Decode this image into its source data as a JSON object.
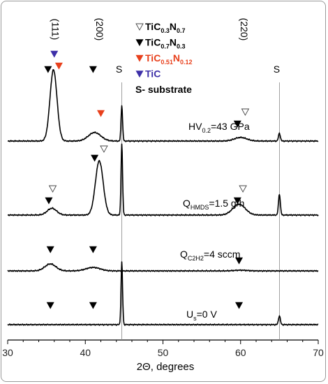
{
  "chart_data": {
    "type": "line",
    "xlabel": "2Θ, degrees",
    "xlim": [
      30,
      70
    ],
    "x_ticks": [
      "30",
      "40",
      "50",
      "60",
      "70"
    ],
    "grid": false,
    "legend_position": "top-center",
    "reflection_labels": [
      {
        "text": "(111)",
        "x": 35.7
      },
      {
        "text": "(200)",
        "x": 41.4
      },
      {
        "text": "(220)",
        "x": 60.0
      }
    ],
    "substrate_lines": [
      {
        "x": 44.7,
        "label": "S"
      },
      {
        "x": 65.0,
        "label": "S"
      }
    ],
    "legend": [
      {
        "marker": "open-triangle",
        "color": "#000000",
        "label": "TiC",
        "sub1": "0.3",
        "mid": "N",
        "sub2": "0.7"
      },
      {
        "marker": "filled-triangle",
        "color": "#000000",
        "label": "TiC",
        "sub1": "0.7",
        "mid": "N",
        "sub2": "0.3"
      },
      {
        "marker": "filled-triangle",
        "color": "#e8401c",
        "label": "TiC",
        "sub1": "0.51",
        "mid": "N",
        "sub2": "0.12"
      },
      {
        "marker": "filled-triangle",
        "color": "#3d2fa8",
        "label": "TiC",
        "sub1": "",
        "mid": "",
        "sub2": ""
      },
      {
        "marker": "none",
        "color": "#000000",
        "label": "S- substrate",
        "sub1": "",
        "mid": "",
        "sub2": ""
      }
    ],
    "series": [
      {
        "name": "HV0.2=43 GPa",
        "label_main": "HV",
        "label_sub": "0.2",
        "label_rest": "=43 GPa",
        "peaks": [
          {
            "x": 35.9,
            "h": 1.0,
            "w": 0.45
          },
          {
            "x": 41.2,
            "h": 0.12,
            "w": 0.8
          },
          {
            "x": 44.7,
            "h": 0.5,
            "w": 0.1
          },
          {
            "x": 60.0,
            "h": 0.05,
            "w": 0.8
          },
          {
            "x": 65.0,
            "h": 0.11,
            "w": 0.12
          }
        ],
        "markers": [
          {
            "x": 35.2,
            "type": "filled",
            "color": "#000000"
          },
          {
            "x": 36.0,
            "type": "filled",
            "color": "#3d2fa8"
          },
          {
            "x": 36.6,
            "type": "filled",
            "color": "#e8401c"
          },
          {
            "x": 41.0,
            "type": "filled",
            "color": "#000000"
          },
          {
            "x": 42.0,
            "type": "filled",
            "color": "#e8401c"
          },
          {
            "x": 59.6,
            "type": "filled",
            "color": "#000000"
          },
          {
            "x": 60.6,
            "type": "open",
            "color": "#000000"
          }
        ]
      },
      {
        "name": "QHMDS=1.5 g/h",
        "label_main": "Q",
        "label_sub": "HMDS",
        "label_rest": "=1.5 g/h",
        "peaks": [
          {
            "x": 35.7,
            "h": 0.1,
            "w": 0.6
          },
          {
            "x": 41.8,
            "h": 0.8,
            "w": 0.5
          },
          {
            "x": 44.7,
            "h": 1.05,
            "w": 0.1
          },
          {
            "x": 59.8,
            "h": 0.16,
            "w": 0.8
          },
          {
            "x": 65.0,
            "h": 0.31,
            "w": 0.12
          }
        ],
        "markers": [
          {
            "x": 35.3,
            "type": "filled",
            "color": "#000000"
          },
          {
            "x": 35.8,
            "type": "open",
            "color": "#000000"
          },
          {
            "x": 41.2,
            "type": "filled",
            "color": "#000000"
          },
          {
            "x": 42.4,
            "type": "open",
            "color": "#000000"
          },
          {
            "x": 59.6,
            "type": "filled",
            "color": "#000000"
          },
          {
            "x": 60.3,
            "type": "open",
            "color": "#000000"
          }
        ]
      },
      {
        "name": "QC2H2=4 sccm",
        "label_main": "Q",
        "label_sub": "C2H2",
        "label_rest": "=4 sccm",
        "peaks": [
          {
            "x": 35.5,
            "h": 0.1,
            "w": 0.7
          },
          {
            "x": 41.0,
            "h": 0.05,
            "w": 0.9
          },
          {
            "x": 60.0,
            "h": 0.01,
            "w": 0.8
          }
        ],
        "markers": [
          {
            "x": 35.5,
            "type": "filled",
            "color": "#000000"
          },
          {
            "x": 41.0,
            "type": "filled",
            "color": "#000000"
          },
          {
            "x": 59.8,
            "type": "filled",
            "color": "#000000"
          }
        ]
      },
      {
        "name": "Us=0 V",
        "label_main": "U",
        "label_sub": "s",
        "label_rest": "=0 V",
        "peaks": [
          {
            "x": 44.7,
            "h": 1.05,
            "w": 0.1
          },
          {
            "x": 65.0,
            "h": 0.15,
            "w": 0.12
          }
        ],
        "markers": [
          {
            "x": 35.5,
            "type": "filled",
            "color": "#000000"
          },
          {
            "x": 41.0,
            "type": "filled",
            "color": "#000000"
          },
          {
            "x": 59.8,
            "type": "filled",
            "color": "#000000"
          }
        ]
      }
    ]
  }
}
